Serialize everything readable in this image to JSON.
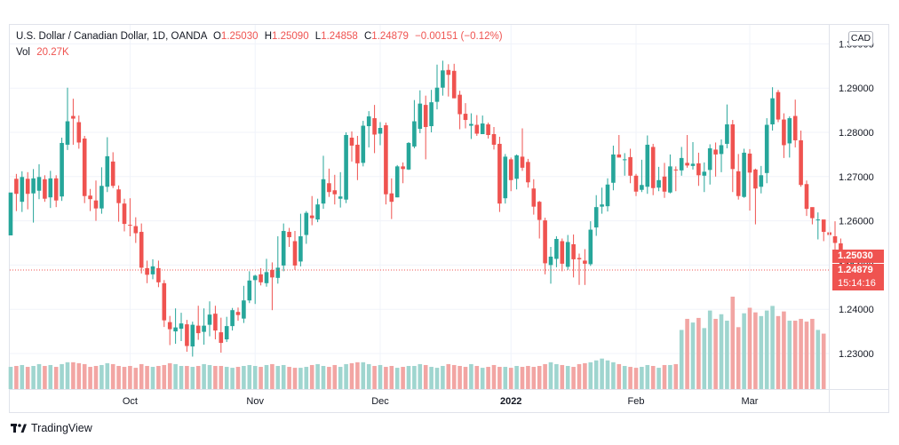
{
  "header": {
    "symbol_title": "U.S. Dollar / Canadian Dollar, 1D, OANDA",
    "ohlc": [
      {
        "key": "O",
        "value": "1.25030"
      },
      {
        "key": "H",
        "value": "1.25090"
      },
      {
        "key": "L",
        "value": "1.24858"
      },
      {
        "key": "C",
        "value": "1.24879"
      }
    ],
    "change": "−0.00151 (−0.12%)",
    "vol_label": "Vol",
    "vol_value": "20.27K"
  },
  "currency_badge": "CAD",
  "price_tags": {
    "open": "1.25030",
    "close": "1.24879",
    "countdown": "15:14:16"
  },
  "footer": {
    "brand": "TradingView"
  },
  "colors": {
    "up": "#26a69a",
    "down": "#ef5350",
    "up_vol": "#9fd5cf",
    "down_vol": "#f2a5a3",
    "grid": "#f0f3fa"
  },
  "chart_data": {
    "type": "candlestick",
    "y_ticks": [
      "1.23000",
      "1.24000",
      "1.25000",
      "1.26000",
      "1.27000",
      "1.28000",
      "1.29000",
      "1.30000"
    ],
    "y_range": [
      1.22,
      1.31
    ],
    "x_labels": [
      {
        "index": 21,
        "label": "Oct"
      },
      {
        "index": 43,
        "label": "Nov"
      },
      {
        "index": 65,
        "label": "Dec"
      },
      {
        "index": 88,
        "label": "2022"
      },
      {
        "index": 110,
        "label": "Feb"
      },
      {
        "index": 130,
        "label": "Mar"
      }
    ],
    "candles": [
      [
        1.2567,
        1.2664,
        1.2648,
        1.2568
      ],
      [
        1.2695,
        1.2661,
        1.2706,
        1.2622
      ],
      [
        1.2643,
        1.2699,
        1.2712,
        1.262
      ],
      [
        1.2695,
        1.2661,
        1.271,
        1.2626
      ],
      [
        1.2662,
        1.2696,
        1.2717,
        1.2596
      ],
      [
        1.2668,
        1.2699,
        1.2728,
        1.2649
      ],
      [
        1.2694,
        1.265,
        1.2703,
        1.2643
      ],
      [
        1.2653,
        1.2696,
        1.2713,
        1.2629
      ],
      [
        1.2696,
        1.2646,
        1.2703,
        1.2631
      ],
      [
        1.2655,
        1.2776,
        1.2788,
        1.2645
      ],
      [
        1.2772,
        1.2825,
        1.2901,
        1.276
      ],
      [
        1.2837,
        1.2831,
        1.2876,
        1.2772
      ],
      [
        1.2823,
        1.2777,
        1.2838,
        1.2763
      ],
      [
        1.2786,
        1.2656,
        1.2792,
        1.264
      ],
      [
        1.2657,
        1.2649,
        1.2672,
        1.2622
      ],
      [
        1.2646,
        1.2628,
        1.2691,
        1.26
      ],
      [
        1.2628,
        1.2679,
        1.2721,
        1.2616
      ],
      [
        1.2677,
        1.2746,
        1.2789,
        1.2665
      ],
      [
        1.2734,
        1.2679,
        1.2755,
        1.2674
      ],
      [
        1.2671,
        1.264,
        1.268,
        1.2598
      ],
      [
        1.2639,
        1.2593,
        1.265,
        1.2576
      ],
      [
        1.2591,
        1.2589,
        1.2651,
        1.2565
      ],
      [
        1.2588,
        1.2572,
        1.2608,
        1.255
      ],
      [
        1.2575,
        1.2494,
        1.2594,
        1.2481
      ],
      [
        1.2493,
        1.2478,
        1.251,
        1.2459
      ],
      [
        1.2479,
        1.2497,
        1.2513,
        1.2468
      ],
      [
        1.2493,
        1.2461,
        1.251,
        1.245
      ],
      [
        1.2459,
        1.2375,
        1.2466,
        1.236
      ],
      [
        1.2371,
        1.2355,
        1.2385,
        1.2319
      ],
      [
        1.235,
        1.2359,
        1.2402,
        1.2322
      ],
      [
        1.2356,
        1.2368,
        1.2392,
        1.2328
      ],
      [
        1.2366,
        1.2317,
        1.2376,
        1.2304
      ],
      [
        1.2316,
        1.2365,
        1.2372,
        1.2293
      ],
      [
        1.2363,
        1.2346,
        1.2408,
        1.2331
      ],
      [
        1.2349,
        1.2363,
        1.2402,
        1.232
      ],
      [
        1.2365,
        1.2388,
        1.2418,
        1.2339
      ],
      [
        1.239,
        1.2352,
        1.2408,
        1.2332
      ],
      [
        1.2348,
        1.2324,
        1.2381,
        1.2302
      ],
      [
        1.2332,
        1.2362,
        1.2383,
        1.2326
      ],
      [
        1.2362,
        1.2398,
        1.2403,
        1.2352
      ],
      [
        1.2394,
        1.2387,
        1.2404,
        1.2374
      ],
      [
        1.2379,
        1.242,
        1.2453,
        1.2369
      ],
      [
        1.242,
        1.2465,
        1.2486,
        1.2414
      ],
      [
        1.2466,
        1.2476,
        1.2478,
        1.2412
      ],
      [
        1.2479,
        1.2461,
        1.2493,
        1.2454
      ],
      [
        1.2459,
        1.2484,
        1.2514,
        1.2451
      ],
      [
        1.2489,
        1.2472,
        1.2506,
        1.2398
      ],
      [
        1.2471,
        1.2494,
        1.2565,
        1.2458
      ],
      [
        1.2499,
        1.2577,
        1.2594,
        1.2486
      ],
      [
        1.2575,
        1.2563,
        1.2584,
        1.2541
      ],
      [
        1.2554,
        1.2499,
        1.2577,
        1.2489
      ],
      [
        1.2508,
        1.2565,
        1.2616,
        1.2497
      ],
      [
        1.2568,
        1.2618,
        1.2622,
        1.2548
      ],
      [
        1.2612,
        1.2606,
        1.2656,
        1.259
      ],
      [
        1.2603,
        1.2637,
        1.265,
        1.2597
      ],
      [
        1.2639,
        1.2694,
        1.2747,
        1.2627
      ],
      [
        1.2685,
        1.2665,
        1.2718,
        1.2654
      ],
      [
        1.2669,
        1.266,
        1.2704,
        1.2637
      ],
      [
        1.265,
        1.2655,
        1.271,
        1.263
      ],
      [
        1.2648,
        1.2794,
        1.28,
        1.264
      ],
      [
        1.2788,
        1.277,
        1.2802,
        1.2734
      ],
      [
        1.2772,
        1.273,
        1.2792,
        1.2692
      ],
      [
        1.2731,
        1.2815,
        1.2826,
        1.2723
      ],
      [
        1.2814,
        1.2836,
        1.2848,
        1.2766
      ],
      [
        1.2832,
        1.2795,
        1.2862,
        1.2753
      ],
      [
        1.2797,
        1.281,
        1.2823,
        1.2771
      ],
      [
        1.2816,
        1.266,
        1.2822,
        1.2637
      ],
      [
        1.2662,
        1.2643,
        1.2696,
        1.2604
      ],
      [
        1.2653,
        1.2723,
        1.2726,
        1.2653
      ],
      [
        1.2723,
        1.2717,
        1.2732,
        1.2685
      ],
      [
        1.2716,
        1.2776,
        1.2778,
        1.2715
      ],
      [
        1.2768,
        1.2825,
        1.2873,
        1.2764
      ],
      [
        1.2808,
        1.2865,
        1.2895,
        1.2798
      ],
      [
        1.2862,
        1.2812,
        1.2883,
        1.2739
      ],
      [
        1.2814,
        1.2868,
        1.2896,
        1.28
      ],
      [
        1.2869,
        1.2901,
        1.2953,
        1.2852
      ],
      [
        1.2901,
        1.294,
        1.2962,
        1.2883
      ],
      [
        1.2941,
        1.293,
        1.2954,
        1.2881
      ],
      [
        1.2939,
        1.2877,
        1.2955,
        1.2877
      ],
      [
        1.2885,
        1.2841,
        1.2894,
        1.2807
      ],
      [
        1.2842,
        1.2828,
        1.2866,
        1.2809
      ],
      [
        1.2815,
        1.2819,
        1.2843,
        1.2785
      ],
      [
        1.2817,
        1.2797,
        1.2839,
        1.2792
      ],
      [
        1.2796,
        1.282,
        1.2838,
        1.2797
      ],
      [
        1.2818,
        1.2794,
        1.2822,
        1.2786
      ],
      [
        1.2796,
        1.2772,
        1.2812,
        1.2761
      ],
      [
        1.2774,
        1.2639,
        1.279,
        1.262
      ],
      [
        1.2651,
        1.2745,
        1.2751,
        1.2639
      ],
      [
        1.2739,
        1.2692,
        1.2743,
        1.2667
      ],
      [
        1.2695,
        1.2748,
        1.275,
        1.2671
      ],
      [
        1.2745,
        1.272,
        1.2809,
        1.2713
      ],
      [
        1.2733,
        1.2687,
        1.274,
        1.2675
      ],
      [
        1.2673,
        1.2632,
        1.2694,
        1.2614
      ],
      [
        1.2643,
        1.2602,
        1.2645,
        1.256
      ],
      [
        1.2601,
        1.2504,
        1.2607,
        1.2479
      ],
      [
        1.25,
        1.2519,
        1.2541,
        1.2458
      ],
      [
        1.2514,
        1.2559,
        1.2565,
        1.2495
      ],
      [
        1.2554,
        1.2503,
        1.256,
        1.2486
      ],
      [
        1.2496,
        1.2552,
        1.2568,
        1.2489
      ],
      [
        1.2547,
        1.2513,
        1.2569,
        1.2472
      ],
      [
        1.2516,
        1.2513,
        1.2526,
        1.2455
      ],
      [
        1.251,
        1.2503,
        1.2536,
        1.2455
      ],
      [
        1.2502,
        1.258,
        1.2599,
        1.2498
      ],
      [
        1.2585,
        1.2631,
        1.2658,
        1.2566
      ],
      [
        1.2632,
        1.2637,
        1.2675,
        1.2616
      ],
      [
        1.2633,
        1.2682,
        1.2696,
        1.2621
      ],
      [
        1.2686,
        1.275,
        1.277,
        1.2669
      ],
      [
        1.275,
        1.2743,
        1.2794,
        1.2744
      ],
      [
        1.2737,
        1.2739,
        1.2753,
        1.2702
      ],
      [
        1.2744,
        1.2702,
        1.2763,
        1.2685
      ],
      [
        1.2702,
        1.2666,
        1.2706,
        1.2656
      ],
      [
        1.267,
        1.2681,
        1.2738,
        1.2665
      ],
      [
        1.2677,
        1.2772,
        1.2793,
        1.2661
      ],
      [
        1.2767,
        1.2674,
        1.2774,
        1.2658
      ],
      [
        1.2675,
        1.2692,
        1.2722,
        1.2667
      ],
      [
        1.27,
        1.2666,
        1.2731,
        1.2652
      ],
      [
        1.2664,
        1.2723,
        1.275,
        1.2662
      ],
      [
        1.2716,
        1.2715,
        1.2723,
        1.2667
      ],
      [
        1.2714,
        1.2742,
        1.2767,
        1.2702
      ],
      [
        1.2731,
        1.2725,
        1.2794,
        1.272
      ],
      [
        1.2724,
        1.2729,
        1.2778,
        1.2716
      ],
      [
        1.273,
        1.2703,
        1.2754,
        1.2679
      ],
      [
        1.2702,
        1.2711,
        1.2732,
        1.2665
      ],
      [
        1.2715,
        1.2764,
        1.2773,
        1.2682
      ],
      [
        1.2761,
        1.275,
        1.2777,
        1.27
      ],
      [
        1.2751,
        1.2771,
        1.2784,
        1.271
      ],
      [
        1.2774,
        1.2818,
        1.2863,
        1.2764
      ],
      [
        1.2818,
        1.2717,
        1.2828,
        1.2665
      ],
      [
        1.2712,
        1.2656,
        1.2751,
        1.2648
      ],
      [
        1.2654,
        1.2754,
        1.2763,
        1.2652
      ],
      [
        1.2752,
        1.2709,
        1.2762,
        1.2623
      ],
      [
        1.2716,
        1.2673,
        1.2718,
        1.2592
      ],
      [
        1.2677,
        1.2703,
        1.2724,
        1.2662
      ],
      [
        1.2708,
        1.2817,
        1.2832,
        1.2685
      ],
      [
        1.2818,
        1.2877,
        1.2902,
        1.2804
      ],
      [
        1.2891,
        1.2829,
        1.2896,
        1.2823
      ],
      [
        1.2829,
        1.2771,
        1.2843,
        1.2742
      ],
      [
        1.2775,
        1.2832,
        1.2836,
        1.2743
      ],
      [
        1.2837,
        1.2782,
        1.2874,
        1.2766
      ],
      [
        1.2782,
        1.2681,
        1.2804,
        1.2677
      ],
      [
        1.2683,
        1.2627,
        1.2691,
        1.2611
      ],
      [
        1.2631,
        1.2606,
        1.263,
        1.2592
      ],
      [
        1.2601,
        1.2603,
        1.2619,
        1.2558
      ],
      [
        1.2603,
        1.2575,
        1.2599,
        1.2554
      ],
      [
        1.2574,
        1.2568,
        1.2587,
        1.254
      ],
      [
        1.2565,
        1.255,
        1.2599,
        1.2534
      ],
      [
        1.2549,
        1.2522,
        1.256,
        1.2482
      ],
      [
        1.2526,
        1.2484,
        1.2534,
        1.2467
      ],
      [
        1.2485,
        1.2503,
        1.2525,
        1.2472
      ],
      [
        1.2503,
        1.2488,
        1.2509,
        1.2486
      ]
    ],
    "volumes": [
      0.24,
      0.25,
      0.26,
      0.24,
      0.25,
      0.27,
      0.25,
      0.26,
      0.24,
      0.27,
      0.29,
      0.29,
      0.28,
      0.27,
      0.24,
      0.25,
      0.26,
      0.28,
      0.27,
      0.25,
      0.24,
      0.25,
      0.23,
      0.27,
      0.25,
      0.24,
      0.25,
      0.26,
      0.28,
      0.27,
      0.25,
      0.25,
      0.24,
      0.25,
      0.27,
      0.26,
      0.25,
      0.25,
      0.24,
      0.23,
      0.24,
      0.25,
      0.26,
      0.25,
      0.24,
      0.26,
      0.27,
      0.25,
      0.26,
      0.24,
      0.23,
      0.23,
      0.24,
      0.26,
      0.27,
      0.25,
      0.24,
      0.26,
      0.24,
      0.27,
      0.28,
      0.29,
      0.29,
      0.27,
      0.25,
      0.26,
      0.24,
      0.25,
      0.23,
      0.24,
      0.25,
      0.25,
      0.27,
      0.26,
      0.24,
      0.23,
      0.25,
      0.27,
      0.26,
      0.25,
      0.24,
      0.27,
      0.25,
      0.23,
      0.24,
      0.26,
      0.24,
      0.24,
      0.23,
      0.25,
      0.24,
      0.25,
      0.24,
      0.25,
      0.27,
      0.29,
      0.27,
      0.26,
      0.25,
      0.24,
      0.27,
      0.28,
      0.29,
      0.31,
      0.33,
      0.31,
      0.29,
      0.27,
      0.25,
      0.24,
      0.23,
      0.24,
      0.26,
      0.25,
      0.23,
      0.26,
      0.26,
      0.27,
      0.64,
      0.76,
      0.72,
      0.77,
      0.66,
      0.85,
      0.76,
      0.81,
      0.74,
      1.0,
      0.67,
      0.82,
      0.88,
      0.83,
      0.79,
      0.85,
      0.9,
      0.79,
      0.84,
      0.74,
      0.74,
      0.76,
      0.73,
      0.76,
      0.64,
      0.6
    ]
  }
}
